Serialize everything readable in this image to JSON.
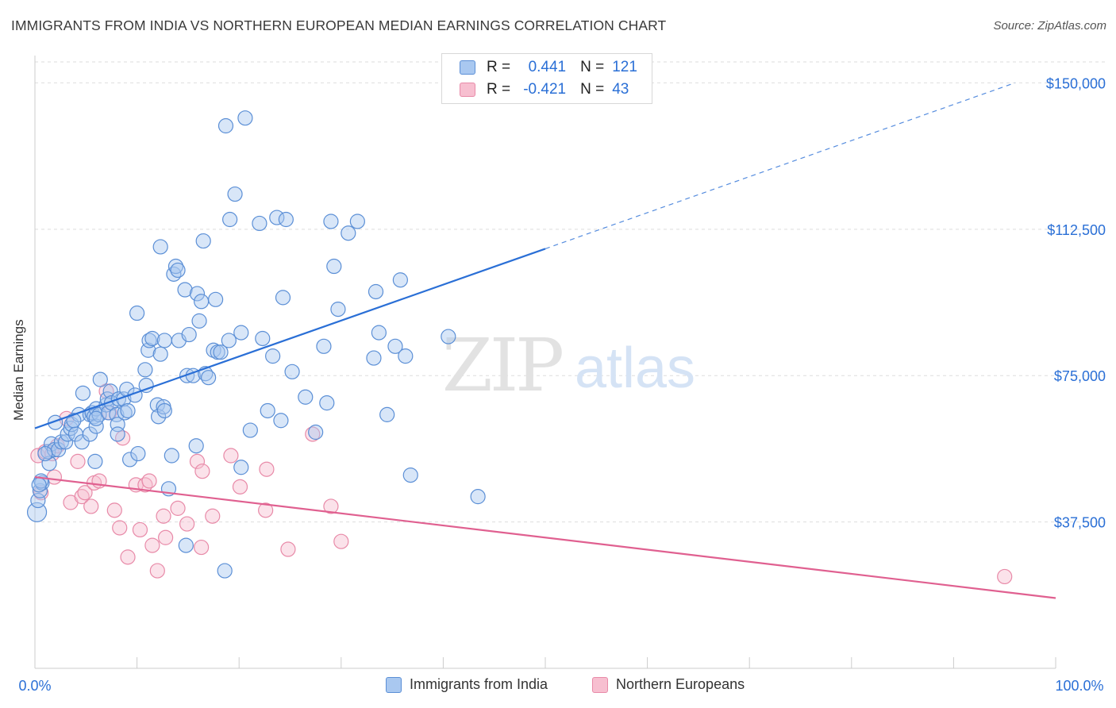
{
  "title": "IMMIGRANTS FROM INDIA VS NORTHERN EUROPEAN MEDIAN EARNINGS CORRELATION CHART",
  "source": "Source: ZipAtlas.com",
  "watermark": {
    "zip": "ZIP",
    "atlas": "atlas"
  },
  "colors": {
    "blue_fill": "#a9c8f0",
    "blue_stroke": "#5b8fd6",
    "blue_line": "#2a6fd6",
    "pink_fill": "#f7bfd0",
    "pink_stroke": "#e88aa8",
    "pink_line": "#e06090",
    "axis_text_blue": "#2a6fd6",
    "grid": "#dddddd"
  },
  "legend_top": {
    "rows": [
      {
        "r_label": "R =",
        "r_value": "0.441",
        "n_label": "N =",
        "n_value": "121"
      },
      {
        "r_label": "R =",
        "r_value": "-0.421",
        "n_label": "N =",
        "n_value": "43"
      }
    ]
  },
  "legend_bottom": {
    "items": [
      {
        "label": "Immigrants from India"
      },
      {
        "label": "Northern Europeans"
      }
    ]
  },
  "chart_data": {
    "type": "scatter",
    "title": "IMMIGRANTS FROM INDIA VS NORTHERN EUROPEAN MEDIAN EARNINGS CORRELATION CHART",
    "xlabel": "",
    "ylabel": "Median Earnings",
    "xlim": [
      0,
      100
    ],
    "ylim": [
      0,
      157000
    ],
    "x_tick_labels": [
      "0.0%",
      "100.0%"
    ],
    "y_ticks": [
      37500,
      75000,
      112500,
      150000
    ],
    "y_tick_labels": [
      "$37,500",
      "$75,000",
      "$112,500",
      "$150,000"
    ],
    "grid": "horizontal dashed",
    "legend_placement": "top-center",
    "series": [
      {
        "name": "Immigrants from India",
        "R": 0.441,
        "N": 121,
        "trend": {
          "x0": 0,
          "y0": 61500,
          "x1": 50,
          "y1": 107500,
          "dashed_to_x": 96,
          "dashed_to_y": 150000
        },
        "points": [
          [
            0.2,
            40000
          ],
          [
            0.3,
            43000
          ],
          [
            0.5,
            45500
          ],
          [
            0.7,
            47500
          ],
          [
            0.6,
            48000
          ],
          [
            1.4,
            52500
          ],
          [
            1.3,
            55500
          ],
          [
            1.6,
            57500
          ],
          [
            1.9,
            56000
          ],
          [
            2.3,
            56000
          ],
          [
            2.6,
            58000
          ],
          [
            3.0,
            58000
          ],
          [
            3.2,
            60000
          ],
          [
            3.5,
            61500
          ],
          [
            3.6,
            62500
          ],
          [
            4.0,
            60000
          ],
          [
            4.3,
            65000
          ],
          [
            4.6,
            58000
          ],
          [
            4.7,
            70500
          ],
          [
            5.4,
            65000
          ],
          [
            5.4,
            60000
          ],
          [
            5.6,
            65500
          ],
          [
            5.8,
            64500
          ],
          [
            6.0,
            62000
          ],
          [
            6.0,
            66500
          ],
          [
            6.3,
            65000
          ],
          [
            6.4,
            74000
          ],
          [
            6.0,
            64000
          ],
          [
            5.9,
            53000
          ],
          [
            7.0,
            67500
          ],
          [
            7.1,
            69000
          ],
          [
            7.2,
            65500
          ],
          [
            7.4,
            71000
          ],
          [
            7.5,
            68000
          ],
          [
            8.0,
            65000
          ],
          [
            8.1,
            62500
          ],
          [
            8.1,
            60000
          ],
          [
            8.2,
            69000
          ],
          [
            8.7,
            69000
          ],
          [
            8.8,
            65500
          ],
          [
            9.0,
            71500
          ],
          [
            9.1,
            66000
          ],
          [
            9.3,
            53500
          ],
          [
            9.8,
            70000
          ],
          [
            10.1,
            55000
          ],
          [
            10.0,
            91000
          ],
          [
            10.8,
            76500
          ],
          [
            10.9,
            72500
          ],
          [
            11.1,
            81500
          ],
          [
            11.2,
            84000
          ],
          [
            11.5,
            84500
          ],
          [
            12.0,
            67500
          ],
          [
            12.1,
            64500
          ],
          [
            12.3,
            80500
          ],
          [
            12.3,
            108000
          ],
          [
            12.6,
            67000
          ],
          [
            12.7,
            84000
          ],
          [
            12.7,
            66000
          ],
          [
            13.1,
            46000
          ],
          [
            13.4,
            54500
          ],
          [
            13.6,
            101000
          ],
          [
            13.8,
            103000
          ],
          [
            14.0,
            102000
          ],
          [
            14.1,
            84000
          ],
          [
            14.7,
            97000
          ],
          [
            14.8,
            31500
          ],
          [
            14.9,
            75000
          ],
          [
            15.1,
            85500
          ],
          [
            15.5,
            75000
          ],
          [
            15.8,
            57000
          ],
          [
            15.9,
            96000
          ],
          [
            16.1,
            89000
          ],
          [
            16.3,
            94000
          ],
          [
            16.5,
            109500
          ],
          [
            16.7,
            75500
          ],
          [
            17.0,
            74500
          ],
          [
            17.5,
            81500
          ],
          [
            17.7,
            94500
          ],
          [
            17.9,
            81000
          ],
          [
            18.2,
            81000
          ],
          [
            18.6,
            25000
          ],
          [
            18.7,
            139000
          ],
          [
            19.0,
            84000
          ],
          [
            19.1,
            115000
          ],
          [
            19.6,
            121500
          ],
          [
            20.2,
            51500
          ],
          [
            20.2,
            86000
          ],
          [
            20.6,
            141000
          ],
          [
            21.1,
            61000
          ],
          [
            22.0,
            114000
          ],
          [
            22.3,
            84500
          ],
          [
            22.8,
            66000
          ],
          [
            23.3,
            80000
          ],
          [
            23.7,
            115500
          ],
          [
            24.1,
            63500
          ],
          [
            24.3,
            95000
          ],
          [
            24.6,
            115000
          ],
          [
            25.2,
            76000
          ],
          [
            26.5,
            69500
          ],
          [
            27.5,
            60500
          ],
          [
            28.3,
            82500
          ],
          [
            28.6,
            68000
          ],
          [
            29.0,
            114500
          ],
          [
            29.3,
            103000
          ],
          [
            29.7,
            92000
          ],
          [
            30.7,
            111500
          ],
          [
            31.6,
            114500
          ],
          [
            33.2,
            79500
          ],
          [
            33.4,
            96500
          ],
          [
            33.7,
            86000
          ],
          [
            34.5,
            65000
          ],
          [
            35.3,
            82500
          ],
          [
            35.8,
            99500
          ],
          [
            36.3,
            80000
          ],
          [
            36.8,
            49500
          ],
          [
            40.5,
            85000
          ],
          [
            43.4,
            44000
          ],
          [
            0.4,
            47000
          ],
          [
            1.0,
            55000
          ],
          [
            2.0,
            63000
          ],
          [
            3.8,
            63500
          ]
        ]
      },
      {
        "name": "Northern Europeans",
        "R": -0.421,
        "N": 43,
        "trend": {
          "x0": 0,
          "y0": 49000,
          "x1": 100,
          "y1": 18000
        },
        "points": [
          [
            0.3,
            54500
          ],
          [
            0.6,
            45000
          ],
          [
            1.0,
            55500
          ],
          [
            1.7,
            55000
          ],
          [
            1.9,
            49000
          ],
          [
            2.2,
            57000
          ],
          [
            3.1,
            64000
          ],
          [
            3.5,
            42500
          ],
          [
            4.2,
            53000
          ],
          [
            4.6,
            44000
          ],
          [
            4.9,
            45000
          ],
          [
            5.5,
            41500
          ],
          [
            5.8,
            47500
          ],
          [
            6.3,
            48000
          ],
          [
            7.0,
            71000
          ],
          [
            7.3,
            65500
          ],
          [
            7.8,
            40500
          ],
          [
            8.3,
            36000
          ],
          [
            8.6,
            59000
          ],
          [
            9.1,
            28500
          ],
          [
            9.9,
            47000
          ],
          [
            10.3,
            35500
          ],
          [
            10.8,
            47000
          ],
          [
            11.2,
            48000
          ],
          [
            11.5,
            31500
          ],
          [
            12.0,
            25000
          ],
          [
            12.6,
            39000
          ],
          [
            12.8,
            33500
          ],
          [
            14.0,
            41000
          ],
          [
            14.9,
            37000
          ],
          [
            15.9,
            53000
          ],
          [
            16.3,
            31000
          ],
          [
            16.4,
            50500
          ],
          [
            17.4,
            39000
          ],
          [
            19.2,
            54500
          ],
          [
            20.1,
            46500
          ],
          [
            22.6,
            40500
          ],
          [
            22.7,
            51000
          ],
          [
            24.8,
            30500
          ],
          [
            27.2,
            60000
          ],
          [
            29.0,
            41500
          ],
          [
            30.0,
            32500
          ],
          [
            95.0,
            23500
          ]
        ]
      }
    ]
  }
}
